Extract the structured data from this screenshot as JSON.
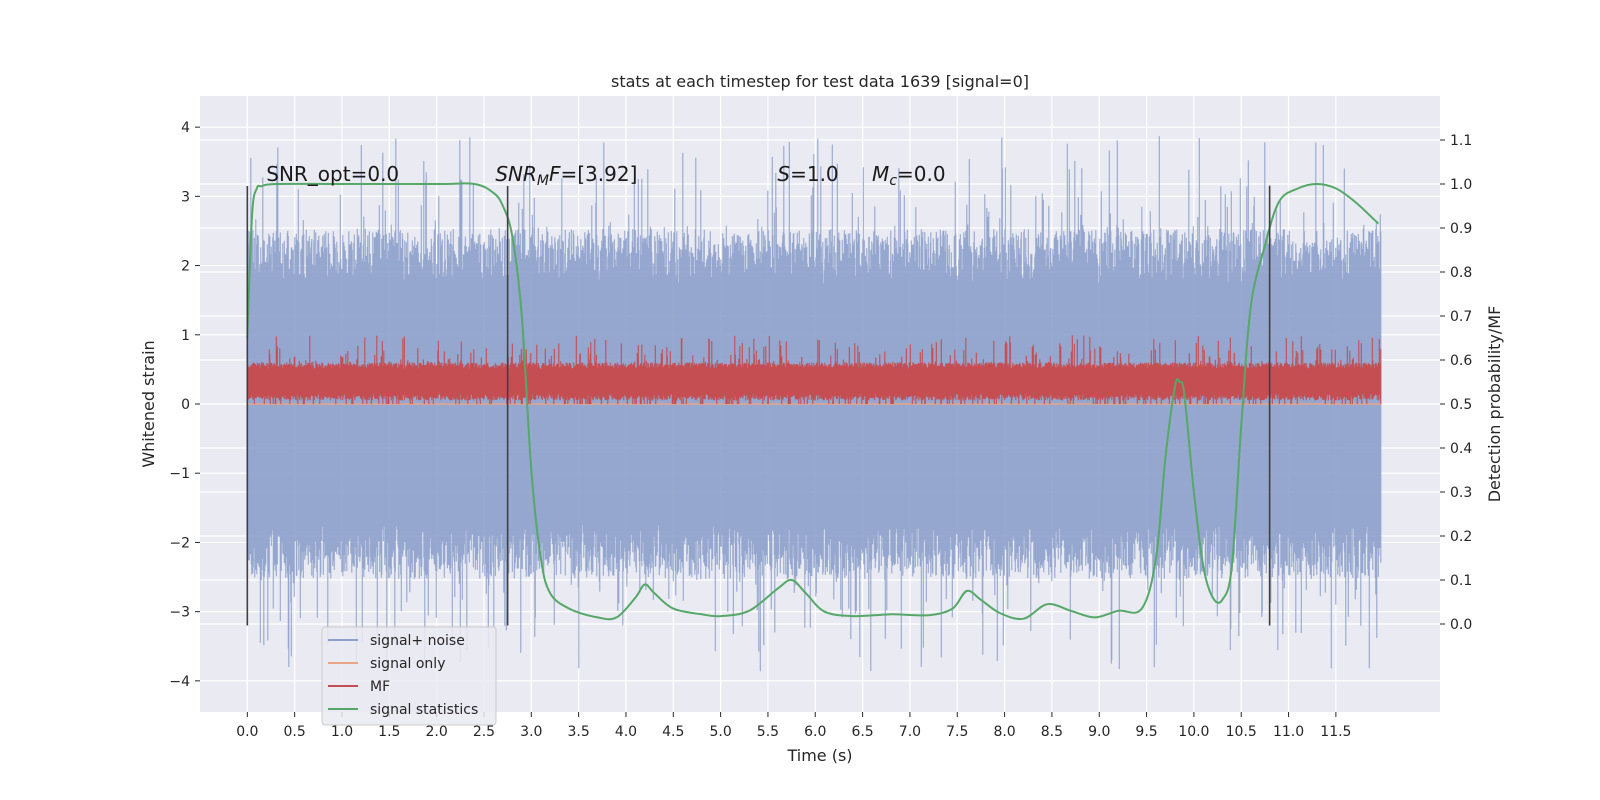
{
  "chart_data": {
    "type": "line",
    "title": "stats at each timestep for test data 1639 [signal=0]",
    "xlabel": "Time (s)",
    "ylabel": "Whitened strain",
    "y2label": "Detection probability/MF",
    "xlim": [
      -0.5,
      12.6
    ],
    "ylim": [
      -4.45,
      4.45
    ],
    "y2lim": [
      -0.2,
      1.2
    ],
    "xticks": [
      0.0,
      0.5,
      1.0,
      1.5,
      2.0,
      2.5,
      3.0,
      3.5,
      4.0,
      4.5,
      5.0,
      5.5,
      6.0,
      6.5,
      7.0,
      7.5,
      8.0,
      8.5,
      9.0,
      9.5,
      10.0,
      10.5,
      11.0,
      11.5
    ],
    "xtick_labels": [
      "0.0",
      "0.5",
      "1.0",
      "1.5",
      "2.0",
      "2.5",
      "3.0",
      "3.5",
      "4.0",
      "4.5",
      "5.0",
      "5.5",
      "6.0",
      "6.5",
      "7.0",
      "7.5",
      "8.0",
      "8.5",
      "9.0",
      "9.5",
      "10.0",
      "10.5",
      "11.0",
      "11.5"
    ],
    "yticks": [
      -4,
      -3,
      -2,
      -1,
      0,
      1,
      2,
      3,
      4
    ],
    "ytick_labels": [
      "−4",
      "−3",
      "−2",
      "−1",
      "0",
      "1",
      "2",
      "3",
      "4"
    ],
    "y2ticks": [
      0.0,
      0.1,
      0.2,
      0.3,
      0.4,
      0.5,
      0.6,
      0.7,
      0.8,
      0.9,
      1.0,
      1.1
    ],
    "y2tick_labels": [
      "0.0",
      "0.1",
      "0.2",
      "0.3",
      "0.4",
      "0.5",
      "0.6",
      "0.7",
      "0.8",
      "0.9",
      "1.0",
      "1.1"
    ],
    "grid": true,
    "legend_position": "lower-left",
    "series": [
      {
        "name": "signal+ noise",
        "axis": "left",
        "color": "#8da0cb",
        "style": "dense-noise",
        "x_range": [
          0.0,
          11.98
        ],
        "amplitude_typical": [
          -2.3,
          2.3
        ],
        "amplitude_extreme": [
          -4.05,
          4.05
        ]
      },
      {
        "name": "signal only",
        "axis": "left",
        "color": "#e9a587",
        "style": "flat",
        "value": 0.0
      },
      {
        "name": "MF",
        "axis": "left",
        "color": "#c44e52",
        "style": "dense-noise",
        "x_range": [
          0.0,
          11.98
        ],
        "amplitude_typical": [
          0.05,
          0.6
        ],
        "amplitude_extreme": [
          0.0,
          1.0
        ]
      },
      {
        "name": "signal statistics",
        "axis": "right",
        "color": "#55a868",
        "style": "smooth",
        "x": [
          0.0,
          0.05,
          0.1,
          0.15,
          0.3,
          1.0,
          2.0,
          2.4,
          2.6,
          2.7,
          2.8,
          2.9,
          3.0,
          3.1,
          3.2,
          3.4,
          3.7,
          3.9,
          4.1,
          4.2,
          4.3,
          4.5,
          4.8,
          5.0,
          5.3,
          5.6,
          5.75,
          5.9,
          6.1,
          6.4,
          6.8,
          7.2,
          7.45,
          7.6,
          7.75,
          7.95,
          8.2,
          8.45,
          8.7,
          8.95,
          9.2,
          9.45,
          9.6,
          9.7,
          9.8,
          9.85,
          9.9,
          10.0,
          10.1,
          10.2,
          10.3,
          10.4,
          10.5,
          10.6,
          10.75,
          10.9,
          11.1,
          11.3,
          11.5,
          11.7,
          11.9,
          11.95
        ],
        "y": [
          0.65,
          0.93,
          0.99,
          0.995,
          1.0,
          1.0,
          1.0,
          1.0,
          0.98,
          0.95,
          0.88,
          0.7,
          0.35,
          0.15,
          0.07,
          0.035,
          0.015,
          0.015,
          0.06,
          0.09,
          0.07,
          0.035,
          0.022,
          0.018,
          0.03,
          0.08,
          0.1,
          0.07,
          0.028,
          0.018,
          0.022,
          0.02,
          0.035,
          0.075,
          0.055,
          0.025,
          0.012,
          0.045,
          0.03,
          0.015,
          0.03,
          0.035,
          0.15,
          0.38,
          0.54,
          0.55,
          0.52,
          0.3,
          0.13,
          0.06,
          0.055,
          0.13,
          0.45,
          0.72,
          0.86,
          0.96,
          0.99,
          1.0,
          0.99,
          0.96,
          0.92,
          0.91
        ]
      }
    ],
    "vlines": {
      "color": "#404040",
      "items": [
        {
          "x": 0.0,
          "ymin": -3.2,
          "ymax": 3.15
        },
        {
          "x": 2.75,
          "ymin": -3.2,
          "ymax": 3.15
        },
        {
          "x": 10.8,
          "ymin": -3.2,
          "ymax": 3.15
        }
      ]
    },
    "annotations": [
      {
        "id": "snr-opt",
        "x": 0.2,
        "y": 3.22,
        "prefix": "SNR_opt=",
        "value": "0.0"
      },
      {
        "id": "snr-mf",
        "x": 2.62,
        "y": 3.22,
        "math": "SNR",
        "sub": "M",
        "math2": "F",
        "value": "=[3.92]"
      },
      {
        "id": "s-label",
        "x": 5.6,
        "y": 3.22,
        "math": "S",
        "value": "=1.0"
      },
      {
        "id": "mc-label",
        "x": 6.6,
        "y": 3.22,
        "math": "M",
        "sub": "c",
        "value": "=0.0"
      }
    ]
  }
}
